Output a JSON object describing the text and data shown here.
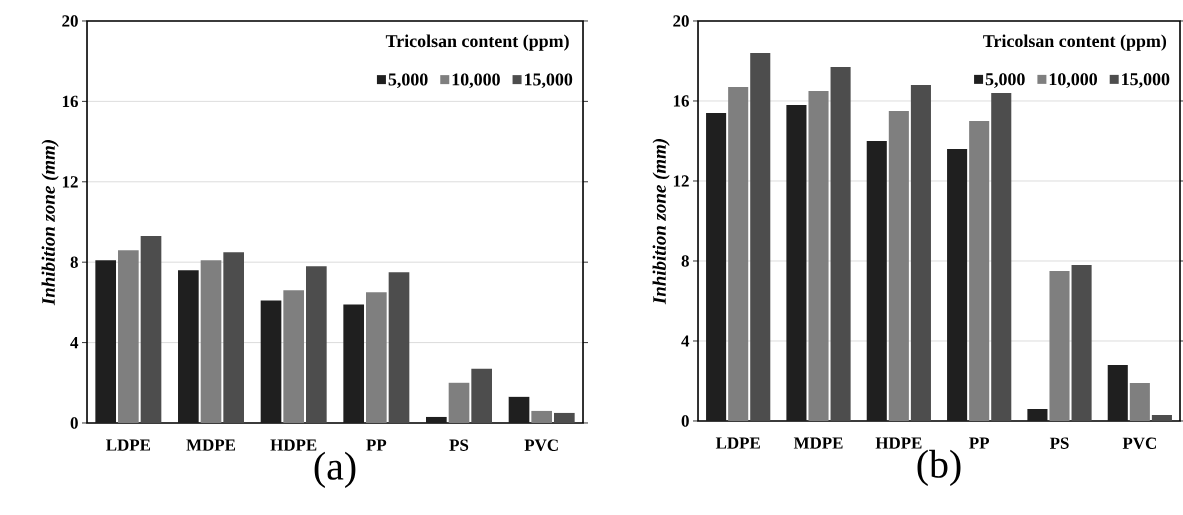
{
  "chart_data": [
    {
      "type": "bar",
      "xlabel": "(a)",
      "ylabel": "Inhibition zone (mm)",
      "legend_title": "Tricolsan content (ppm)",
      "categories": [
        "LDPE",
        "MDPE",
        "HDPE",
        "PP",
        "PS",
        "PVC"
      ],
      "series": [
        {
          "name": "5,000",
          "color": "#1f1f1f",
          "values": [
            8.1,
            7.6,
            6.1,
            5.9,
            0.3,
            1.3
          ]
        },
        {
          "name": "10,000",
          "color": "#7f7f7f",
          "values": [
            8.6,
            8.1,
            6.6,
            6.5,
            2.0,
            0.6
          ]
        },
        {
          "name": "15,000",
          "color": "#4d4d4d",
          "values": [
            9.3,
            8.5,
            7.8,
            7.5,
            2.7,
            0.5
          ]
        }
      ],
      "ylim": [
        0,
        20
      ],
      "yticks": [
        0,
        4,
        8,
        12,
        16,
        20
      ],
      "grid": "y",
      "legend": "top right"
    },
    {
      "type": "bar",
      "xlabel": "(b)",
      "ylabel": "Inhibition zone (mm)",
      "legend_title": "Tricolsan content (ppm)",
      "categories": [
        "LDPE",
        "MDPE",
        "HDPE",
        "PP",
        "PS",
        "PVC"
      ],
      "series": [
        {
          "name": "5,000",
          "color": "#1f1f1f",
          "values": [
            15.4,
            15.8,
            14.0,
            13.6,
            0.6,
            2.8
          ]
        },
        {
          "name": "10,000",
          "color": "#7f7f7f",
          "values": [
            16.7,
            16.5,
            15.5,
            15.0,
            7.5,
            1.9
          ]
        },
        {
          "name": "15,000",
          "color": "#4d4d4d",
          "values": [
            18.4,
            17.7,
            16.8,
            16.4,
            7.8,
            0.3
          ]
        }
      ],
      "ylim": [
        0,
        20
      ],
      "yticks": [
        0,
        4,
        8,
        12,
        16,
        20
      ],
      "grid": "y",
      "legend": "top right"
    }
  ]
}
